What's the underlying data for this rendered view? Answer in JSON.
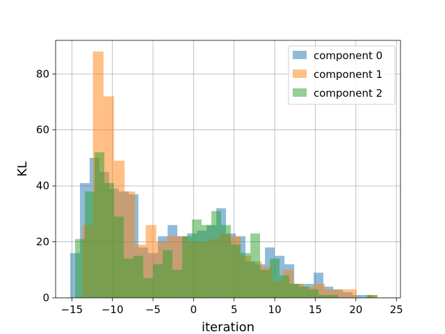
{
  "chart_data": {
    "type": "bar",
    "title": "",
    "xlabel": "iteration",
    "ylabel": "KL",
    "xlim": [
      -17,
      25.5
    ],
    "ylim": [
      0,
      92
    ],
    "xticks": [
      -15,
      -10,
      -5,
      0,
      5,
      10,
      15,
      20,
      25
    ],
    "yticks": [
      0,
      20,
      40,
      60,
      80
    ],
    "grid": true,
    "legend_position": "top-right",
    "alpha": 0.5,
    "series": [
      {
        "name": "component 0",
        "color": "#1f77b4",
        "edges": [
          -15.2,
          -14.0,
          -12.8,
          -11.6,
          -10.4,
          -9.2,
          -8.0,
          -6.8,
          -5.6,
          -4.4,
          -3.2,
          -2.0,
          -0.8,
          0.4,
          1.6,
          2.8,
          4.0,
          5.2,
          6.4,
          7.6,
          8.8,
          10.0,
          11.2,
          12.4,
          13.6,
          14.8,
          16.0,
          17.2,
          18.4,
          19.6,
          20.8,
          22.0
        ],
        "counts": [
          16,
          41,
          50,
          45,
          39,
          38,
          37,
          18,
          16,
          22,
          26,
          22,
          23,
          24,
          26,
          32,
          23,
          22,
          13,
          12,
          18,
          15,
          12,
          5,
          5,
          9,
          4,
          3,
          2,
          1,
          1
        ]
      },
      {
        "name": "component 1",
        "color": "#ff7f0e",
        "edges": [
          -13.7,
          -12.4,
          -11.1,
          -9.8,
          -8.5,
          -7.2,
          -5.9,
          -4.6,
          -3.3,
          -2.0,
          -0.7,
          0.6,
          1.9,
          3.2,
          4.5,
          5.8,
          7.1,
          8.4,
          9.7,
          11.0,
          12.3,
          13.6,
          14.9,
          16.2,
          17.5,
          18.8,
          20.1,
          21.4,
          22.7,
          24.0
        ],
        "counts": [
          26,
          88,
          72,
          49,
          38,
          19,
          26,
          20,
          22,
          22,
          20,
          20,
          21,
          23,
          22,
          15,
          13,
          11,
          6,
          10,
          5,
          4,
          5,
          3,
          3,
          3,
          0,
          1,
          0
        ]
      },
      {
        "name": "component 2",
        "color": "#2ca02c",
        "edges": [
          -14.6,
          -13.4,
          -12.2,
          -11.0,
          -9.8,
          -8.6,
          -7.4,
          -6.2,
          -5.0,
          -3.8,
          -2.6,
          -1.4,
          -0.2,
          1.0,
          2.2,
          3.4,
          4.6,
          5.8,
          7.0,
          8.2,
          9.4,
          10.6,
          11.8,
          13.0,
          14.2,
          15.4,
          16.6,
          17.8,
          19.0,
          20.2,
          21.4,
          22.6
        ],
        "counts": [
          21,
          38,
          52,
          41,
          29,
          14,
          15,
          7,
          12,
          17,
          10,
          22,
          28,
          26,
          31,
          26,
          19,
          16,
          23,
          10,
          14,
          8,
          5,
          4,
          3,
          1,
          1,
          0,
          0,
          0,
          1
        ]
      }
    ]
  }
}
